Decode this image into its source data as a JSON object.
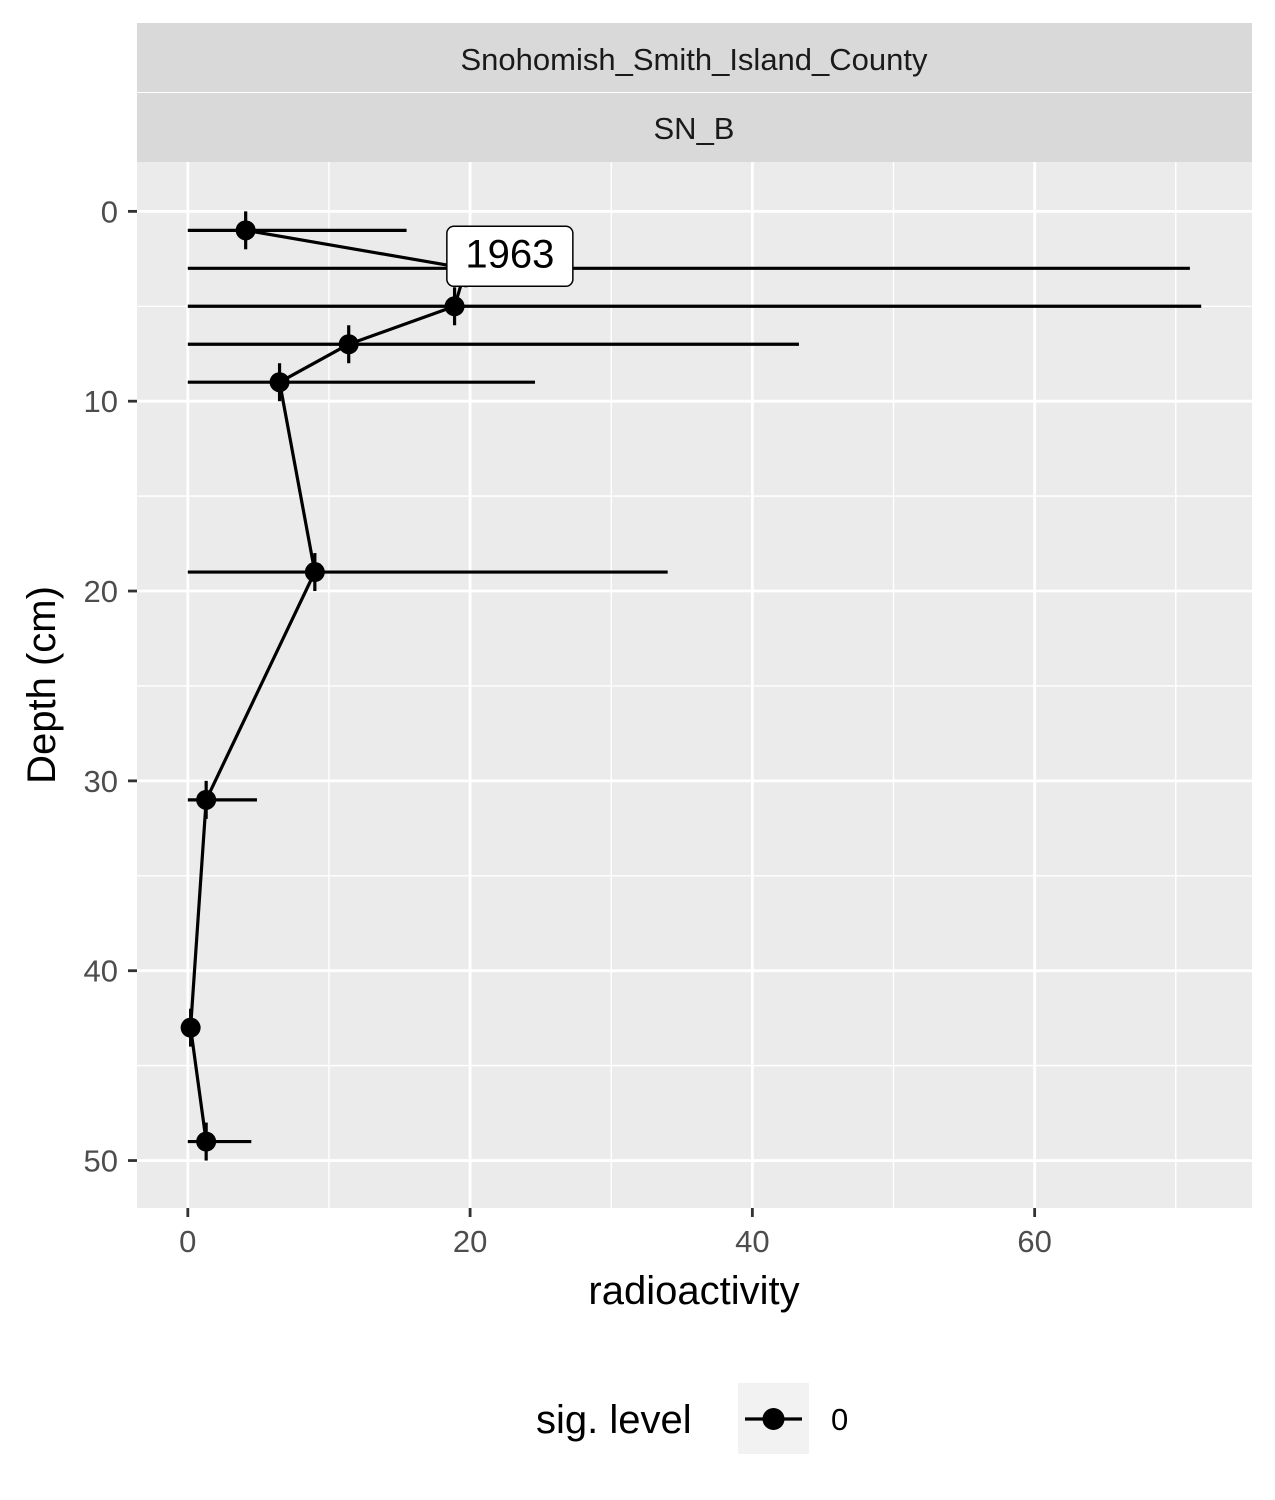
{
  "chart_data": {
    "type": "scatter",
    "facet_labels": [
      "Snohomish_Smith_Island_County",
      "SN_B"
    ],
    "xlabel": "radioactivity",
    "ylabel": "Depth (cm)",
    "xlim": [
      -3.6,
      75.4
    ],
    "ylim": [
      -2.6,
      52.5
    ],
    "y_reversed": true,
    "x_ticks": [
      0,
      20,
      40,
      60
    ],
    "y_ticks": [
      0,
      10,
      20,
      30,
      40,
      50
    ],
    "grid": true,
    "series": [
      {
        "name": "0",
        "color": "#000000",
        "points": [
          {
            "x": 4.1,
            "y": 1,
            "xmin": 0,
            "xmax": 15.5,
            "ymin": 0,
            "ymax": 2
          },
          {
            "x": 19.7,
            "y": 3,
            "xmin": 0,
            "xmax": 71.0,
            "ymin": 2,
            "ymax": 4
          },
          {
            "x": 18.9,
            "y": 5,
            "xmin": 0,
            "xmax": 71.8,
            "ymin": 4,
            "ymax": 6
          },
          {
            "x": 11.4,
            "y": 7,
            "xmin": 0,
            "xmax": 43.3,
            "ymin": 6,
            "ymax": 8
          },
          {
            "x": 6.5,
            "y": 9,
            "xmin": 0,
            "xmax": 24.6,
            "ymin": 8,
            "ymax": 10
          },
          {
            "x": 9.0,
            "y": 19,
            "xmin": 0,
            "xmax": 34.0,
            "ymin": 18,
            "ymax": 20
          },
          {
            "x": 1.3,
            "y": 31,
            "xmin": 0,
            "xmax": 4.9,
            "ymin": 30,
            "ymax": 32
          },
          {
            "x": 0.2,
            "y": 43,
            "xmin": 0,
            "xmax": 0.2,
            "ymin": 42,
            "ymax": 44
          },
          {
            "x": 1.3,
            "y": 49,
            "xmin": 0,
            "xmax": 4.5,
            "ymin": 48,
            "ymax": 50
          }
        ]
      }
    ],
    "annotations": [
      {
        "text": "1963",
        "x": 19.7,
        "y": 3
      }
    ],
    "legend": {
      "title": "sig. level",
      "position": "bottom",
      "entries": [
        "0"
      ]
    }
  }
}
